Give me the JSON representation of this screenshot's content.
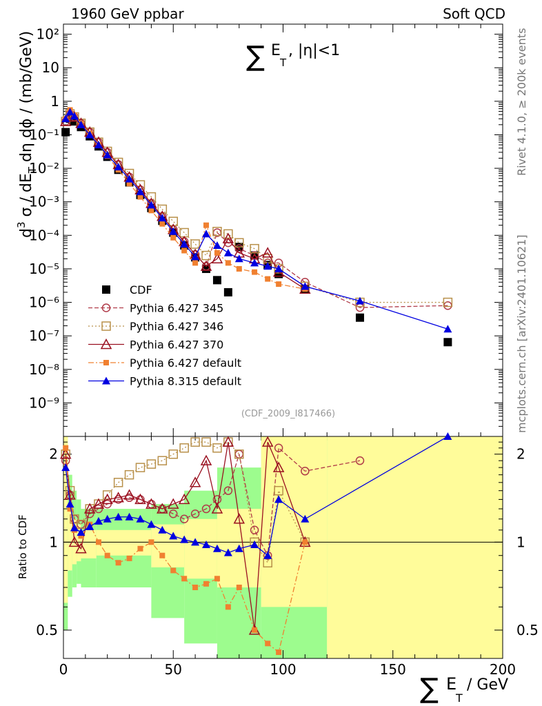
{
  "header": {
    "left": "1960 GeV ppbar",
    "right": "Soft QCD"
  },
  "side_notes": {
    "rivet": "Rivet 4.1.0, ≥ 200k events",
    "site": "mcplots.cern.ch [arXiv:2401.10621]"
  },
  "colors": {
    "cdf": "#000000",
    "p345": "#b03a48",
    "p346": "#b8904a",
    "p370": "#9a1020",
    "pdef": "#f08030",
    "p8": "#0000e0",
    "band_inner": "#fffc9a",
    "band_outer": "#9dfc8e"
  },
  "chart_data": [
    {
      "type": "scatter",
      "title": "∑ E_T , |η|<1",
      "title_parts": {
        "sum": "∑",
        "e": "E",
        "sub": "T",
        "rest": ", |η|<1"
      },
      "ylabel": "d³σ / dE_T dη dϕ / (mb/GeV)",
      "ylabel_parts": {
        "a": "d",
        "a_sup": "3",
        "b": " σ / dE",
        "b_sub": "T",
        "c": " dη dϕ / (mb/GeV)"
      },
      "analysis_tag": "(CDF_2009_I817466)",
      "xlim": [
        0,
        200
      ],
      "ylim": [
        1e-10,
        200
      ],
      "yscale": "log",
      "y_tick_labels": [
        "10⁻⁹",
        "10⁻⁸",
        "10⁻⁷",
        "10⁻⁶",
        "10⁻⁵",
        "10⁻⁴",
        "10⁻³",
        "10⁻²",
        "10⁻¹",
        "1",
        "10",
        "10²"
      ],
      "legend_position": "lower-left",
      "series": [
        {
          "name": "CDF",
          "key": "cdf",
          "marker": "square-filled",
          "x": [
            1,
            3,
            5,
            8,
            12,
            16,
            20,
            25,
            30,
            35,
            40,
            45,
            50,
            55,
            60,
            65,
            70,
            75,
            80,
            87,
            93,
            98,
            110,
            135,
            175
          ],
          "y": [
            0.12,
            0.3,
            0.25,
            0.17,
            0.09,
            0.045,
            0.022,
            0.009,
            0.0038,
            0.0016,
            0.00065,
            0.00027,
            0.00012,
            5e-05,
            2.2e-05,
            1e-05,
            4.6e-06,
            2e-06,
            4.5e-05,
            2.5e-05,
            1.3e-05,
            7e-06,
            2.5e-06,
            3.5e-07,
            6.5e-08
          ]
        },
        {
          "name": "Pythia 6.427 345",
          "key": "p345",
          "marker": "circle-open",
          "line": "dashed",
          "x": [
            1,
            3,
            5,
            8,
            12,
            16,
            20,
            25,
            30,
            35,
            40,
            45,
            50,
            55,
            60,
            65,
            70,
            75,
            80,
            87,
            93,
            98,
            110,
            135,
            175
          ],
          "y": [
            0.25,
            0.42,
            0.34,
            0.22,
            0.12,
            0.06,
            0.03,
            0.013,
            0.0055,
            0.0023,
            0.0009,
            0.00037,
            0.00015,
            6.5e-05,
            2.7e-05,
            1.2e-05,
            0.00012,
            6e-05,
            4e-05,
            2.5e-05,
            1.5e-05,
            1.5e-05,
            4e-06,
            7e-07,
            8e-07
          ]
        },
        {
          "name": "Pythia 6.427 346",
          "key": "p346",
          "marker": "square-open",
          "line": "dotted",
          "x": [
            1,
            3,
            5,
            8,
            12,
            16,
            20,
            25,
            30,
            35,
            40,
            45,
            50,
            55,
            60,
            65,
            70,
            75,
            80,
            87,
            93,
            98,
            110,
            135,
            175
          ],
          "y": [
            0.25,
            0.42,
            0.34,
            0.22,
            0.12,
            0.06,
            0.032,
            0.015,
            0.007,
            0.0032,
            0.0014,
            0.0006,
            0.00026,
            0.00012,
            5.5e-05,
            2.5e-05,
            0.00013,
            0.00011,
            6e-05,
            4e-05,
            2e-05,
            1e-05,
            3e-06,
            1e-06,
            1e-06
          ]
        },
        {
          "name": "Pythia 6.427 370",
          "key": "p370",
          "marker": "triangle-open",
          "line": "solid",
          "x": [
            1,
            3,
            5,
            8,
            12,
            16,
            20,
            25,
            30,
            35,
            40,
            45,
            50,
            55,
            60,
            65,
            70,
            75,
            80,
            87,
            93,
            98,
            110
          ],
          "y": [
            0.25,
            0.42,
            0.34,
            0.22,
            0.12,
            0.06,
            0.03,
            0.013,
            0.0055,
            0.0023,
            0.0009,
            0.00037,
            0.00015,
            6.5e-05,
            2.7e-05,
            1.2e-05,
            2e-05,
            8e-05,
            3e-05,
            2e-05,
            3e-05,
            8e-06,
            2.5e-06
          ]
        },
        {
          "name": "Pythia 6.427 default",
          "key": "pdef",
          "marker": "square-filled-small",
          "line": "dashdot",
          "x": [
            1,
            3,
            5,
            8,
            12,
            16,
            20,
            25,
            30,
            35,
            40,
            45,
            50,
            55,
            60,
            65,
            70,
            75,
            80,
            87,
            93,
            98,
            110
          ],
          "y": [
            0.3,
            0.55,
            0.38,
            0.22,
            0.11,
            0.05,
            0.023,
            0.009,
            0.0035,
            0.0014,
            0.00055,
            0.00022,
            8.5e-05,
            3.5e-05,
            1.5e-05,
            0.0002,
            3e-05,
            1.5e-05,
            1e-05,
            8e-06,
            5e-06,
            3.5e-06,
            2.5e-06
          ]
        },
        {
          "name": "Pythia 8.315 default",
          "key": "p8",
          "marker": "triangle-filled",
          "line": "solid",
          "x": [
            1,
            3,
            5,
            8,
            12,
            16,
            20,
            25,
            30,
            35,
            40,
            45,
            50,
            55,
            60,
            65,
            70,
            75,
            80,
            87,
            93,
            98,
            110,
            135,
            175
          ],
          "y": [
            0.3,
            0.48,
            0.36,
            0.2,
            0.1,
            0.05,
            0.025,
            0.011,
            0.0048,
            0.002,
            0.0008,
            0.00033,
            0.00013,
            5.5e-05,
            2.3e-05,
            0.00011,
            5e-05,
            3e-05,
            2e-05,
            1.5e-05,
            1.2e-05,
            1e-05,
            3e-06,
            1.1e-06,
            1.6e-07
          ]
        }
      ]
    },
    {
      "type": "scatter",
      "title": "",
      "ylabel": "Ratio to CDF",
      "xlabel": "∑ E_T  / GeV",
      "xlabel_parts": {
        "sum": "∑",
        "e": "E",
        "sub": "T",
        "rest": " / GeV"
      },
      "xlim": [
        0,
        200
      ],
      "ylim": [
        0.4,
        2.3
      ],
      "yscale": "log",
      "x_ticks": [
        0,
        50,
        100,
        150,
        200
      ],
      "y_ticks": [
        0.5,
        1,
        2
      ],
      "reference_line": 1,
      "bands": {
        "x_edges": [
          0,
          2,
          4,
          6,
          8,
          15,
          40,
          55,
          70,
          90,
          120,
          200
        ],
        "inner_low": [
          0.62,
          0.8,
          0.84,
          0.86,
          0.88,
          0.9,
          0.82,
          0.75,
          0.7,
          0.6,
          0.4
        ],
        "inner_high": [
          2.3,
          1.3,
          1.2,
          1.15,
          1.1,
          1.1,
          1.15,
          1.2,
          1.3,
          2.3,
          2.3
        ],
        "outer_low": [
          0.5,
          0.65,
          0.7,
          0.72,
          0.7,
          0.7,
          0.55,
          0.45,
          0.4,
          0.4,
          0.4
        ],
        "outer_high": [
          2.3,
          1.7,
          1.5,
          1.4,
          1.3,
          1.3,
          1.35,
          1.5,
          1.8,
          2.3,
          2.3
        ]
      },
      "series": [
        {
          "name": "Pythia 6.427 345",
          "key": "p345",
          "x": [
            1,
            3,
            5,
            8,
            12,
            16,
            20,
            25,
            30,
            35,
            40,
            45,
            50,
            55,
            60,
            65,
            70,
            75,
            80,
            87,
            93,
            98,
            110,
            135
          ],
          "y": [
            1.9,
            1.45,
            1.2,
            1.15,
            1.25,
            1.3,
            1.35,
            1.4,
            1.42,
            1.4,
            1.35,
            1.3,
            1.25,
            1.2,
            1.25,
            1.3,
            1.4,
            1.5,
            2.0,
            1.1,
            0.9,
            2.1,
            1.75,
            1.9
          ]
        },
        {
          "name": "Pythia 6.427 346",
          "key": "p346",
          "x": [
            1,
            3,
            5,
            8,
            12,
            16,
            20,
            25,
            30,
            35,
            40,
            45,
            50,
            55,
            60,
            65,
            70,
            75,
            80,
            87,
            93,
            98,
            110
          ],
          "y": [
            2.0,
            1.5,
            1.2,
            1.15,
            1.3,
            1.35,
            1.45,
            1.6,
            1.7,
            1.8,
            1.85,
            1.9,
            2.0,
            2.1,
            2.2,
            2.2,
            2.1,
            2.2,
            2.0,
            1.0,
            0.85,
            1.5,
            1.0
          ]
        },
        {
          "name": "Pythia 6.427 370",
          "key": "p370",
          "x": [
            1,
            3,
            5,
            8,
            12,
            16,
            20,
            25,
            30,
            35,
            40,
            45,
            50,
            55,
            60,
            65,
            70,
            75,
            80,
            87,
            93,
            98,
            110
          ],
          "y": [
            2.0,
            1.45,
            1.0,
            0.95,
            1.3,
            1.35,
            1.4,
            1.42,
            1.45,
            1.4,
            1.35,
            1.3,
            1.35,
            1.4,
            1.6,
            1.9,
            1.3,
            2.2,
            1.2,
            0.5,
            2.2,
            1.8,
            1.0
          ]
        },
        {
          "name": "Pythia 6.427 default",
          "key": "pdef",
          "x": [
            1,
            3,
            5,
            8,
            12,
            16,
            20,
            25,
            30,
            35,
            40,
            45,
            50,
            55,
            60,
            65,
            70,
            75,
            80,
            87,
            93,
            98,
            110
          ],
          "y": [
            2.1,
            1.3,
            1.1,
            1.05,
            1.15,
            1.0,
            0.9,
            0.85,
            0.88,
            0.95,
            1.0,
            0.9,
            0.8,
            0.75,
            0.7,
            0.72,
            0.75,
            0.6,
            0.7,
            0.5,
            0.45,
            0.42,
            1.0
          ]
        },
        {
          "name": "Pythia 8.315 default",
          "key": "p8",
          "x": [
            1,
            3,
            5,
            8,
            12,
            16,
            20,
            25,
            30,
            35,
            40,
            45,
            50,
            55,
            60,
            65,
            70,
            75,
            80,
            87,
            93,
            98,
            110,
            175
          ],
          "y": [
            1.8,
            1.35,
            1.12,
            1.08,
            1.13,
            1.18,
            1.2,
            1.22,
            1.22,
            1.2,
            1.15,
            1.1,
            1.05,
            1.02,
            1.0,
            0.98,
            0.95,
            0.92,
            0.95,
            0.98,
            0.9,
            1.4,
            1.2,
            2.3
          ]
        }
      ]
    }
  ]
}
